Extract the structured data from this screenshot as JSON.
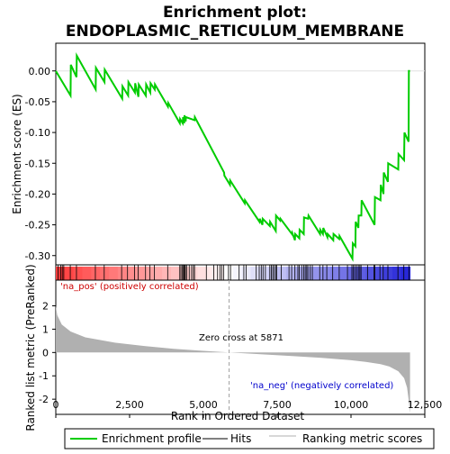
{
  "chart_data": {
    "type": "line",
    "title_line1": "Enrichment plot:",
    "title_line2": "ENDOPLASMIC_RETICULUM_MEMBRANE",
    "ylabel_top": "Enrichment score (ES)",
    "ylabel_bottom": "Ranked list metric (PreRanked)",
    "xlabel": "Rank in Ordered Dataset",
    "n_genes": 12000,
    "top_yticks": [
      "0.00",
      "-0.05",
      "-0.10",
      "-0.15",
      "-0.20",
      "-0.25",
      "-0.30"
    ],
    "top_ytick_values": [
      0.0,
      -0.05,
      -0.1,
      -0.15,
      -0.2,
      -0.25,
      -0.3
    ],
    "top_ylim": [
      -0.315,
      0.045
    ],
    "bottom_yticks": [
      "2",
      "1",
      "0",
      "-1",
      "-2"
    ],
    "bottom_ytick_values": [
      2,
      1,
      0,
      -1,
      -2
    ],
    "bottom_ylim": [
      -2.65,
      3.1
    ],
    "xticks": [
      "0",
      "2,500",
      "5,000",
      "7,500",
      "10,000",
      "12,500"
    ],
    "xtick_values": [
      0,
      2500,
      5000,
      7500,
      10000,
      12500
    ],
    "xlim": [
      0,
      12500
    ],
    "es_profile": {
      "name": "Enrichment profile",
      "color": "#00cc00",
      "x": [
        0,
        500,
        510,
        700,
        710,
        1350,
        1360,
        1650,
        1660,
        2250,
        2260,
        2450,
        2460,
        2680,
        2690,
        2800,
        2810,
        3050,
        3060,
        3200,
        3210,
        3350,
        3360,
        3800,
        3810,
        4200,
        4210,
        4300,
        4310,
        4350,
        4360,
        4400,
        4410,
        4700,
        4710,
        5700,
        5710,
        5900,
        5910,
        6400,
        6410,
        6900,
        6910,
        7000,
        7010,
        7250,
        7260,
        7450,
        7460,
        7600,
        7610,
        8000,
        8010,
        8100,
        8110,
        8250,
        8260,
        8400,
        8410,
        8550,
        8560,
        8950,
        8960,
        9050,
        9060,
        9200,
        9210,
        9400,
        9410,
        9600,
        9610,
        10050,
        10060,
        10150,
        10160,
        10250,
        10260,
        10350,
        10360,
        10800,
        10810,
        11000,
        11010,
        11100,
        11110,
        11250,
        11260,
        11600,
        11610,
        11800,
        11810,
        11950,
        11960,
        12000
      ],
      "y": [
        0.0,
        -0.04,
        0.01,
        -0.01,
        0.025,
        -0.03,
        0.005,
        -0.018,
        0.002,
        -0.045,
        -0.025,
        -0.04,
        -0.018,
        -0.035,
        -0.02,
        -0.042,
        -0.022,
        -0.04,
        -0.022,
        -0.035,
        -0.02,
        -0.03,
        -0.022,
        -0.058,
        -0.052,
        -0.085,
        -0.078,
        -0.085,
        -0.075,
        -0.085,
        -0.072,
        -0.082,
        -0.075,
        -0.08,
        -0.075,
        -0.165,
        -0.17,
        -0.185,
        -0.178,
        -0.215,
        -0.21,
        -0.245,
        -0.24,
        -0.25,
        -0.24,
        -0.252,
        -0.245,
        -0.26,
        -0.235,
        -0.243,
        -0.24,
        -0.265,
        -0.263,
        -0.275,
        -0.265,
        -0.272,
        -0.258,
        -0.265,
        -0.238,
        -0.24,
        -0.235,
        -0.265,
        -0.258,
        -0.265,
        -0.255,
        -0.27,
        -0.265,
        -0.275,
        -0.265,
        -0.273,
        -0.268,
        -0.305,
        -0.28,
        -0.285,
        -0.245,
        -0.255,
        -0.235,
        -0.235,
        -0.21,
        -0.25,
        -0.205,
        -0.21,
        -0.185,
        -0.2,
        -0.165,
        -0.18,
        -0.15,
        -0.16,
        -0.135,
        -0.145,
        -0.1,
        -0.115,
        0.0,
        0.0
      ]
    },
    "hits": [
      80,
      170,
      220,
      270,
      490,
      700,
      1340,
      1640,
      2230,
      2430,
      2670,
      2790,
      3040,
      3190,
      3340,
      3790,
      4200,
      4240,
      4290,
      4320,
      4340,
      4370,
      4390,
      4440,
      4520,
      4600,
      4660,
      4700,
      5100,
      5350,
      5480,
      5560,
      5620,
      5690,
      5850,
      5920,
      6210,
      6370,
      6450,
      6790,
      6890,
      6960,
      7020,
      7100,
      7250,
      7300,
      7350,
      7400,
      7450,
      7480,
      7640,
      7900,
      7990,
      8100,
      8200,
      8250,
      8330,
      8400,
      8450,
      8500,
      8540,
      8620,
      8690,
      8940,
      9050,
      9180,
      9380,
      9600,
      9880,
      10030,
      10080,
      10130,
      10190,
      10250,
      10300,
      10340,
      10560,
      10780,
      10810,
      10980,
      11090,
      11250,
      11590,
      11790,
      11960
    ],
    "hits_label": "Hits",
    "ranking_label": "Ranking metric scores",
    "na_pos_label": "'na_pos' (positively correlated)",
    "na_neg_label": "'na_neg' (negatively correlated)",
    "zero_cross_label": "Zero cross at 5871",
    "zero_cross": 5871,
    "metric_curve": {
      "x": [
        0,
        50,
        200,
        500,
        1000,
        2000,
        3000,
        4000,
        5000,
        5871,
        7000,
        8000,
        9000,
        10000,
        10500,
        11000,
        11300,
        11600,
        11800,
        11900,
        11950,
        12000
      ],
      "y": [
        2.0,
        1.6,
        1.2,
        0.9,
        0.65,
        0.42,
        0.28,
        0.16,
        0.07,
        0.0,
        -0.08,
        -0.15,
        -0.23,
        -0.33,
        -0.4,
        -0.5,
        -0.6,
        -0.8,
        -1.1,
        -1.5,
        -2.0,
        -2.6
      ]
    },
    "colors": {
      "es_line": "#00cc00",
      "hits": "#000000",
      "metric_fill": "#b0b0b0",
      "pos_label": "#cc0000",
      "neg_label": "#0000cc",
      "zero_line": "#a0a0a0",
      "bar_red": "#cc0000",
      "bar_blue": "#0000cc"
    },
    "legend": {
      "items": [
        "Enrichment profile",
        "Hits",
        "Ranking metric scores"
      ]
    }
  }
}
